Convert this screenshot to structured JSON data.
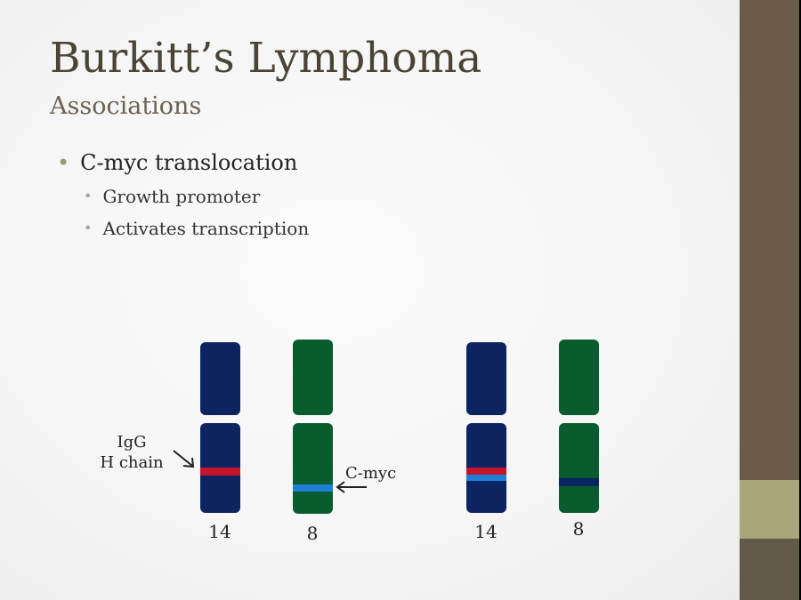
{
  "slide": {
    "title": "Burkitt’s Lymphoma",
    "subtitle": "Associations",
    "bullets": [
      {
        "text": "C-myc translocation",
        "sub": [
          "Growth promoter",
          "Activates transcription"
        ]
      }
    ]
  },
  "diagram": {
    "normal": {
      "chromosomes": [
        "14",
        "8"
      ]
    },
    "translocated": {
      "chromosomes": [
        "14",
        "8"
      ]
    },
    "labels": {
      "igg_line1": "IgG",
      "igg_line2": "H chain",
      "cmyc": "C-myc"
    },
    "colors": {
      "chr14": "#0c2461",
      "chr8": "#095c2e",
      "igg_band": "#c4142a",
      "cmyc_band": "#1e7fd6"
    }
  },
  "theme": {
    "sidebar": "#6b5c49",
    "sidebar_accent": "#aba57c"
  }
}
